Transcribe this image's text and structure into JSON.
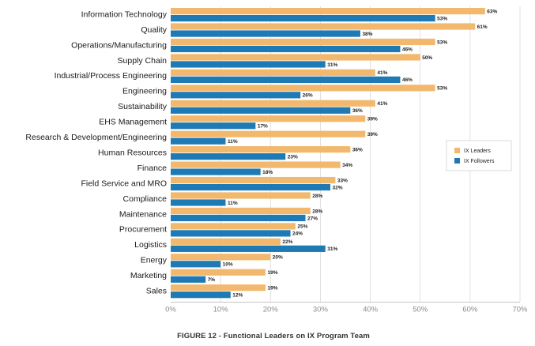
{
  "chart_data": {
    "type": "bar",
    "orientation": "horizontal",
    "categories": [
      "Information Technology",
      "Quality",
      "Operations/Manufacturing",
      "Supply Chain",
      "Industrial/Process Engineering",
      "Engineering",
      "Sustainability",
      "EHS Management",
      "Research & Development/Engineering",
      "Human Resources",
      "Finance",
      "Field Service and MRO",
      "Compliance",
      "Maintenance",
      "Procurement",
      "Logistics",
      "Energy",
      "Marketing",
      "Sales"
    ],
    "series": [
      {
        "name": "IX Leaders",
        "color": "#f2b96e",
        "values": [
          63,
          61,
          53,
          50,
          41,
          53,
          41,
          39,
          39,
          36,
          34,
          33,
          28,
          28,
          25,
          22,
          20,
          19,
          19
        ],
        "labels": [
          "63%",
          "61%",
          "53%",
          "50%",
          "41%",
          "53%",
          "41%",
          "39%",
          "39%",
          "36%",
          "34%",
          "33%",
          "28%",
          "28%",
          "25%",
          "22%",
          "20%",
          "19%",
          "19%"
        ]
      },
      {
        "name": "IX Followers",
        "color": "#1d7ab5",
        "values": [
          53,
          38,
          46,
          31,
          46,
          26,
          36,
          17,
          11,
          23,
          18,
          32,
          11,
          27,
          24,
          31,
          10,
          7,
          12
        ],
        "labels": [
          "53%",
          "38%",
          "46%",
          "31%",
          "46%",
          "26%",
          "36%",
          "17%",
          "11%",
          "23%",
          "18%",
          "32%",
          "11%",
          "27%",
          "24%",
          "31%",
          "10%",
          "7%",
          "12%"
        ]
      }
    ],
    "xlim": [
      0,
      70
    ],
    "xticks": [
      "0%",
      "10%",
      "20%",
      "30%",
      "40%",
      "50%",
      "60%",
      "70%"
    ],
    "grid": true,
    "legend_position": "right",
    "caption": "FIGURE 12 - Functional Leaders on IX Program Team"
  }
}
